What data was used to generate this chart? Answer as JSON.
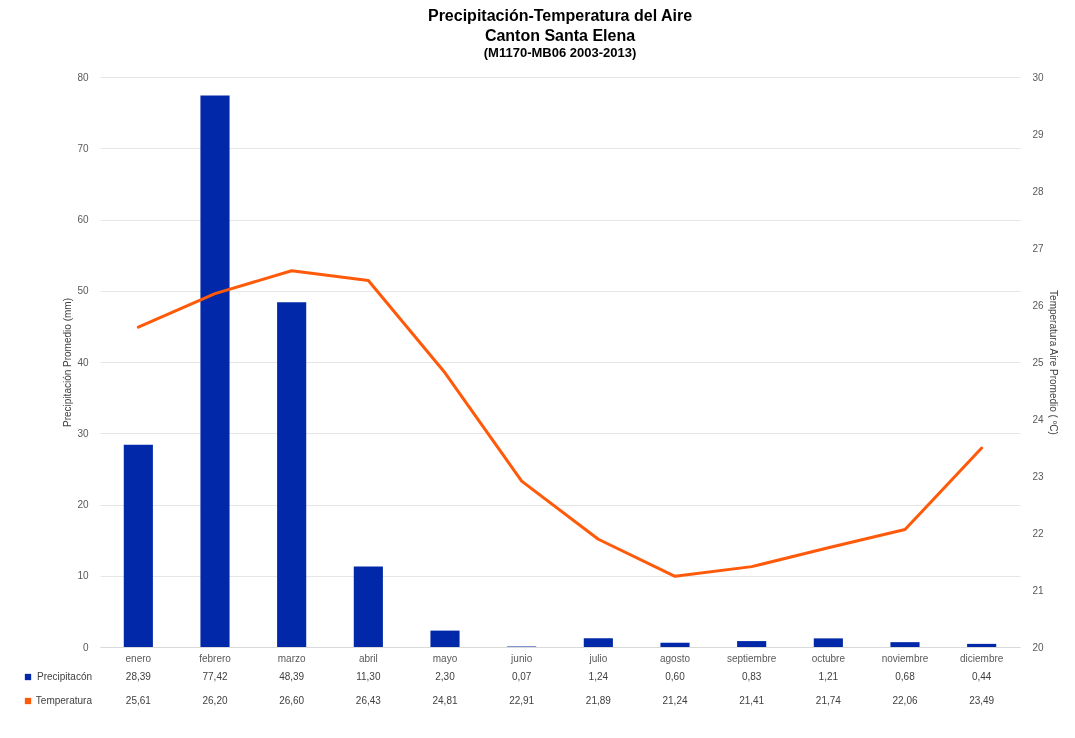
{
  "chart_data": {
    "type": "bar",
    "title": "Precipitación-Temperatura del Aire",
    "subtitle": "Canton Santa Elena",
    "annotations": [
      "(M1170-MB06 2003-2013)"
    ],
    "ylabel": "Precipitación Promedio  (mm)",
    "y2label": "Temperatura Aire Promedio ( ºC)",
    "categories": [
      "enero",
      "febrero",
      "marzo",
      "abril",
      "mayo",
      "junio",
      "julio",
      "agosto",
      "septiembre",
      "octubre",
      "noviembre",
      "diciembre"
    ],
    "series": [
      {
        "name": "Precipitacón",
        "color": "#0028a8",
        "values": [
          28.39,
          77.42,
          48.39,
          11.3,
          2.3,
          0.07,
          1.24,
          0.6,
          0.83,
          1.21,
          0.68,
          0.44
        ],
        "value_labels": [
          "28,39",
          "77,42",
          "48,39",
          "11,30",
          "2,30",
          "0,07",
          "1,24",
          "0,60",
          "0,83",
          "1,21",
          "0,68",
          "0,44"
        ]
      },
      {
        "name": "Temperatura",
        "type": "line",
        "axis": "y2",
        "color": "#ff5a0a",
        "values": [
          25.61,
          26.2,
          26.6,
          26.43,
          24.81,
          22.91,
          21.89,
          21.24,
          21.41,
          21.74,
          22.06,
          23.49
        ],
        "value_labels": [
          "25,61",
          "26,20",
          "26,60",
          "26,43",
          "24,81",
          "22,91",
          "21,89",
          "21,24",
          "21,41",
          "21,74",
          "22,06",
          "23,49"
        ]
      }
    ],
    "ylim": [
      0,
      80
    ],
    "yticks": [
      0,
      10,
      20,
      30,
      40,
      50,
      60,
      70,
      80
    ],
    "y2lim": [
      20,
      30
    ],
    "y2ticks": [
      20,
      21,
      22,
      23,
      24,
      25,
      26,
      27,
      28,
      29,
      30
    ],
    "grid": "y",
    "legend": "bottom left",
    "marker": "none",
    "line_style": "solid"
  }
}
